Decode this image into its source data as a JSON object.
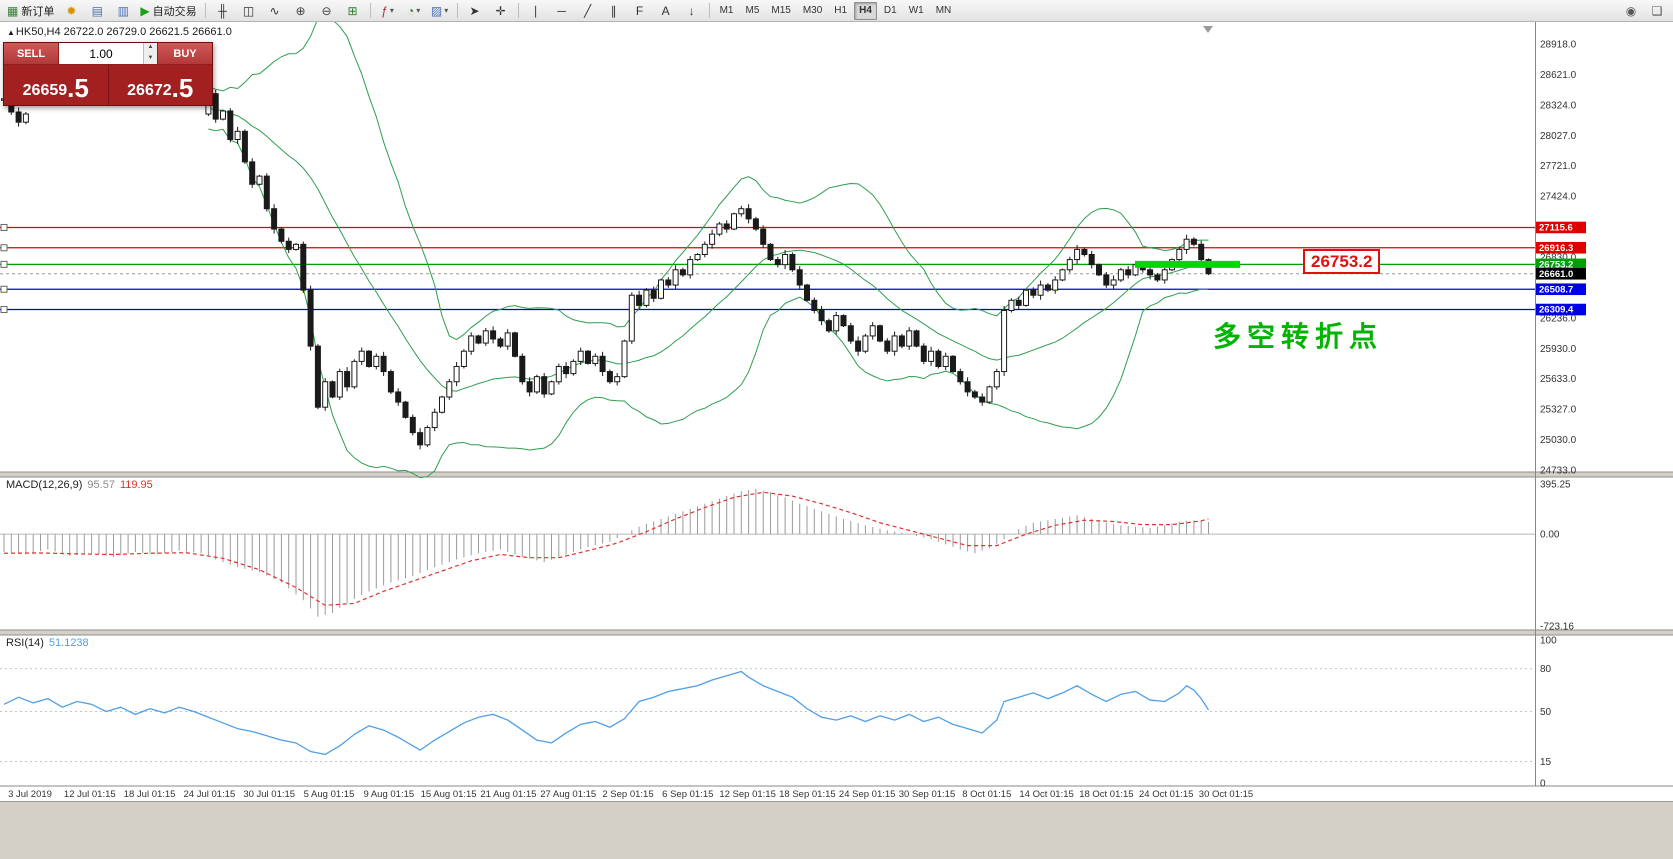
{
  "toolbar": {
    "groups": [
      {
        "items": [
          {
            "name": "new-order-button",
            "glyph": "▦",
            "color": "#2e7d32",
            "label": "新订单"
          },
          {
            "name": "megaphone-icon",
            "glyph": "✹",
            "color": "#d98f00"
          },
          {
            "name": "market-watch-button",
            "glyph": "▤",
            "color": "#4a6fb5"
          },
          {
            "name": "data-window-button",
            "glyph": "▥",
            "color": "#4a6fb5"
          },
          {
            "name": "autotrading-button",
            "glyph": "▶",
            "color": "#1e9e1e",
            "label": "自动交易"
          }
        ]
      },
      {
        "items": [
          {
            "name": "bar-chart-button",
            "glyph": "╫",
            "color": "#333333"
          },
          {
            "name": "candlestick-chart-button",
            "glyph": "◫",
            "color": "#333333"
          },
          {
            "name": "line-chart-button",
            "glyph": "∿",
            "color": "#333333"
          },
          {
            "name": "zoom-in-button",
            "glyph": "⊕",
            "color": "#444444"
          },
          {
            "name": "zoom-out-button",
            "glyph": "⊖",
            "color": "#444444"
          },
          {
            "name": "tile-windows-button",
            "glyph": "⊞",
            "color": "#2e7d32"
          }
        ]
      },
      {
        "items": [
          {
            "name": "indicators-button",
            "glyph": "ƒ",
            "color": "#b03030",
            "dropdown": true
          },
          {
            "name": "periods-button",
            "glyph": "◔",
            "color": "#2e7d32",
            "dropdown": true
          },
          {
            "name": "templates-button",
            "glyph": "▨",
            "color": "#4a6fb5",
            "dropdown": true
          }
        ]
      },
      {
        "items": [
          {
            "name": "cursor-button",
            "glyph": "➤",
            "color": "#333333"
          },
          {
            "name": "crosshair-button",
            "glyph": "✛",
            "color": "#333333"
          }
        ]
      },
      {
        "items": [
          {
            "name": "vertical-line-button",
            "glyph": "∣",
            "color": "#333333"
          },
          {
            "name": "horizontal-line-button",
            "glyph": "─",
            "color": "#333333"
          },
          {
            "name": "trendline-button",
            "glyph": "╱",
            "color": "#333333"
          },
          {
            "name": "channel-button",
            "glyph": "∥",
            "color": "#333333"
          },
          {
            "name": "fibonacci-button",
            "glyph": "F",
            "color": "#333333"
          },
          {
            "name": "text-button",
            "glyph": "A",
            "color": "#333333"
          },
          {
            "name": "arrows-button",
            "glyph": "↓",
            "color": "#333333"
          }
        ]
      }
    ],
    "timeframes": [
      "M1",
      "M5",
      "M15",
      "M30",
      "H1",
      "H4",
      "D1",
      "W1",
      "MN"
    ],
    "active_timeframe": "H4",
    "right_icons": [
      {
        "name": "notification-icon",
        "glyph": "◉",
        "color": "#555555"
      },
      {
        "name": "chat-icon",
        "glyph": "❑",
        "color": "#555555"
      }
    ]
  },
  "chart_header": {
    "symbol_readout": "HK50,H4 26722.0 26729.0 26621.5 26661.0"
  },
  "trade_panel": {
    "sell_label": "SELL",
    "buy_label": "BUY",
    "volume": "1.00",
    "sell_price": "26659.5",
    "buy_price": "26672.5"
  },
  "annotations": {
    "turning_point": "多空转折点",
    "price_callout": "26753.2"
  },
  "indicator_labels": {
    "macd_name": "MACD(12,26,9)",
    "macd_value_1": "95.57",
    "macd_value_2": "119.95",
    "rsi_name": "RSI(14)",
    "rsi_value": "51.1238"
  },
  "chart_data": {
    "type": "candlestick+indicators",
    "symbol": "HK50",
    "timeframe": "H4",
    "ohlc_readout": {
      "open": "26722.0",
      "high": "26729.0",
      "low": "26621.5",
      "close": "26661.0"
    },
    "price_axis_top": 28918.0,
    "price_axis_bottom": 24733.0,
    "price_axis_labels": [
      "28918.0",
      "28621.0",
      "28324.0",
      "28027.0",
      "27721.0",
      "27424.0",
      "27127.0",
      "26830.0",
      "26533.0",
      "26236.0",
      "25930.0",
      "25633.0",
      "25327.0",
      "25030.0",
      "24733.0"
    ],
    "hlines": [
      {
        "value": 27115.6,
        "label": "27115.6",
        "color": "#e00000",
        "type": "resistance"
      },
      {
        "value": 26916.3,
        "label": "26916.3",
        "color": "#e00000",
        "type": "resistance"
      },
      {
        "value": 26753.2,
        "label": "26753.2",
        "color": "#00a000",
        "type": "pivot"
      },
      {
        "value": 26508.7,
        "label": "26508.7",
        "color": "#0000e8",
        "type": "support"
      },
      {
        "value": 26309.4,
        "label": "26309.4",
        "color": "#0000e8",
        "type": "support"
      }
    ],
    "current_price_line": {
      "value": 26661.0,
      "label": "26661.0",
      "color": "#000000"
    },
    "highlight_segment": {
      "price": 26753.2,
      "x_start": 1135,
      "x_end": 1240,
      "color": "#00d800",
      "width": 7
    },
    "closes": [
      28380,
      28250,
      28150,
      28230,
      null,
      null,
      null,
      null,
      null,
      null,
      null,
      null,
      null,
      null,
      null,
      null,
      null,
      null,
      null,
      null,
      null,
      null,
      null,
      null,
      null,
      null,
      null,
      null,
      28430,
      28180,
      28260,
      27980,
      28060,
      27760,
      27540,
      27620,
      27300,
      27100,
      26980,
      26900,
      26950,
      26500,
      25950,
      25350,
      25600,
      25450,
      25700,
      25550,
      25800,
      25900,
      25750,
      25850,
      25700,
      25500,
      25400,
      25250,
      25100,
      24980,
      25150,
      25300,
      25450,
      25600,
      25750,
      25900,
      26050,
      25980,
      26100,
      26020,
      25950,
      26080,
      25850,
      25600,
      25500,
      25650,
      25480,
      25600,
      25750,
      25680,
      25800,
      25900,
      25780,
      25850,
      25700,
      25600,
      25650,
      26000,
      26450,
      26350,
      26500,
      26420,
      26600,
      26550,
      26700,
      26650,
      26800,
      26850,
      26950,
      27050,
      27150,
      27100,
      27250,
      27300,
      27200,
      27100,
      26950,
      26800,
      26750,
      26850,
      26700,
      26550,
      26400,
      26300,
      26200,
      26100,
      26250,
      26150,
      26000,
      25900,
      26050,
      26150,
      26000,
      25900,
      26050,
      25950,
      26100,
      25950,
      25800,
      25900,
      25750,
      25850,
      25700,
      25600,
      25500,
      25450,
      25400,
      25550,
      25700,
      26300,
      26400,
      26350,
      26500,
      26450,
      26550,
      26500,
      26600,
      26700,
      26800,
      26900,
      26850,
      26750,
      26650,
      26550,
      26600,
      26700,
      26650,
      26750,
      26700,
      26650,
      26600,
      26700,
      26800,
      26900,
      27000,
      26950,
      26800,
      26661
    ],
    "bollinger": {
      "period": 20,
      "deviation": 2,
      "color": "#2e9e50"
    },
    "macd": {
      "label": "MACD(12,26,9)",
      "axis_labels": [
        "395.25",
        "0.00",
        "-723.16"
      ],
      "ylim": [
        -723.16,
        395.25
      ],
      "hist_waypoints": [
        [
          0,
          -140
        ],
        [
          3,
          -160
        ],
        [
          6,
          -120
        ],
        [
          9,
          -170
        ],
        [
          12,
          -150
        ],
        [
          15,
          -180
        ],
        [
          18,
          -140
        ],
        [
          21,
          -160
        ],
        [
          24,
          -130
        ],
        [
          27,
          -150
        ],
        [
          29,
          -200
        ],
        [
          32,
          -260
        ],
        [
          35,
          -300
        ],
        [
          38,
          -380
        ],
        [
          41,
          -520
        ],
        [
          43,
          -650
        ],
        [
          45,
          -620
        ],
        [
          47,
          -540
        ],
        [
          50,
          -450
        ],
        [
          53,
          -380
        ],
        [
          56,
          -330
        ],
        [
          59,
          -260
        ],
        [
          62,
          -200
        ],
        [
          65,
          -150
        ],
        [
          68,
          -120
        ],
        [
          71,
          -180
        ],
        [
          74,
          -220
        ],
        [
          77,
          -160
        ],
        [
          80,
          -100
        ],
        [
          83,
          -60
        ],
        [
          85,
          0
        ],
        [
          87,
          60
        ],
        [
          90,
          120
        ],
        [
          93,
          180
        ],
        [
          96,
          240
        ],
        [
          99,
          300
        ],
        [
          101,
          340
        ],
        [
          103,
          355
        ],
        [
          105,
          330
        ],
        [
          107,
          290
        ],
        [
          109,
          240
        ],
        [
          112,
          180
        ],
        [
          115,
          120
        ],
        [
          118,
          70
        ],
        [
          121,
          30
        ],
        [
          124,
          0
        ],
        [
          127,
          -40
        ],
        [
          129,
          -80
        ],
        [
          131,
          -120
        ],
        [
          133,
          -150
        ],
        [
          135,
          -110
        ],
        [
          137,
          -40
        ],
        [
          139,
          40
        ],
        [
          141,
          90
        ],
        [
          143,
          110
        ],
        [
          145,
          130
        ],
        [
          147,
          150
        ],
        [
          149,
          120
        ],
        [
          151,
          90
        ],
        [
          153,
          70
        ],
        [
          155,
          60
        ],
        [
          157,
          50
        ],
        [
          159,
          70
        ],
        [
          161,
          100
        ],
        [
          163,
          110
        ],
        [
          157,
          50
        ],
        [
          165,
          96
        ]
      ],
      "signal_waypoints": [
        [
          0,
          -150
        ],
        [
          5,
          -148
        ],
        [
          10,
          -155
        ],
        [
          15,
          -160
        ],
        [
          20,
          -150
        ],
        [
          25,
          -146
        ],
        [
          30,
          -190
        ],
        [
          35,
          -280
        ],
        [
          40,
          -420
        ],
        [
          44,
          -560
        ],
        [
          48,
          -545
        ],
        [
          52,
          -450
        ],
        [
          56,
          -370
        ],
        [
          60,
          -290
        ],
        [
          64,
          -210
        ],
        [
          68,
          -160
        ],
        [
          72,
          -185
        ],
        [
          76,
          -185
        ],
        [
          80,
          -130
        ],
        [
          84,
          -70
        ],
        [
          88,
          20
        ],
        [
          92,
          120
        ],
        [
          96,
          210
        ],
        [
          100,
          290
        ],
        [
          104,
          330
        ],
        [
          108,
          300
        ],
        [
          112,
          240
        ],
        [
          116,
          170
        ],
        [
          120,
          90
        ],
        [
          124,
          30
        ],
        [
          128,
          -30
        ],
        [
          132,
          -90
        ],
        [
          136,
          -90
        ],
        [
          140,
          0
        ],
        [
          144,
          70
        ],
        [
          148,
          110
        ],
        [
          152,
          100
        ],
        [
          156,
          75
        ],
        [
          160,
          75
        ],
        [
          164,
          105
        ],
        [
          165,
          120
        ]
      ]
    },
    "rsi": {
      "label": "RSI(14)",
      "axis_labels": [
        "100",
        "80",
        "50",
        "15",
        "0"
      ],
      "axis_values": [
        100,
        80,
        50,
        15,
        0
      ],
      "levels": [
        80,
        50,
        15
      ],
      "color": "#4f9fe8",
      "waypoints": [
        [
          0,
          55
        ],
        [
          2,
          60
        ],
        [
          4,
          56
        ],
        [
          6,
          59
        ],
        [
          8,
          53
        ],
        [
          10,
          57
        ],
        [
          12,
          55
        ],
        [
          14,
          50
        ],
        [
          16,
          53
        ],
        [
          18,
          48
        ],
        [
          20,
          52
        ],
        [
          22,
          49
        ],
        [
          24,
          53
        ],
        [
          26,
          50
        ],
        [
          28,
          46
        ],
        [
          30,
          42
        ],
        [
          32,
          38
        ],
        [
          34,
          36
        ],
        [
          36,
          33
        ],
        [
          38,
          30
        ],
        [
          40,
          28
        ],
        [
          42,
          22
        ],
        [
          44,
          20
        ],
        [
          46,
          26
        ],
        [
          48,
          34
        ],
        [
          50,
          40
        ],
        [
          52,
          37
        ],
        [
          54,
          32
        ],
        [
          56,
          26
        ],
        [
          57,
          23
        ],
        [
          59,
          30
        ],
        [
          61,
          36
        ],
        [
          63,
          42
        ],
        [
          65,
          46
        ],
        [
          67,
          48
        ],
        [
          69,
          44
        ],
        [
          71,
          37
        ],
        [
          73,
          30
        ],
        [
          75,
          28
        ],
        [
          77,
          35
        ],
        [
          79,
          41
        ],
        [
          81,
          43
        ],
        [
          83,
          39
        ],
        [
          85,
          45
        ],
        [
          87,
          57
        ],
        [
          89,
          60
        ],
        [
          91,
          64
        ],
        [
          93,
          66
        ],
        [
          95,
          68
        ],
        [
          97,
          72
        ],
        [
          99,
          75
        ],
        [
          101,
          78
        ],
        [
          102,
          74
        ],
        [
          104,
          68
        ],
        [
          106,
          64
        ],
        [
          108,
          60
        ],
        [
          110,
          52
        ],
        [
          112,
          46
        ],
        [
          114,
          44
        ],
        [
          116,
          47
        ],
        [
          118,
          43
        ],
        [
          120,
          47
        ],
        [
          122,
          44
        ],
        [
          124,
          48
        ],
        [
          126,
          43
        ],
        [
          128,
          46
        ],
        [
          130,
          41
        ],
        [
          132,
          38
        ],
        [
          134,
          35
        ],
        [
          136,
          44
        ],
        [
          137,
          57
        ],
        [
          139,
          60
        ],
        [
          141,
          63
        ],
        [
          143,
          59
        ],
        [
          145,
          63
        ],
        [
          147,
          68
        ],
        [
          149,
          62
        ],
        [
          151,
          57
        ],
        [
          153,
          62
        ],
        [
          155,
          64
        ],
        [
          157,
          58
        ],
        [
          159,
          57
        ],
        [
          161,
          63
        ],
        [
          162,
          68
        ],
        [
          163,
          65
        ],
        [
          164,
          59
        ],
        [
          165,
          51.12
        ]
      ]
    },
    "x_axis_labels": [
      "3 Jul 2019",
      "12 Jul 01:15",
      "18 Jul 01:15",
      "24 Jul 01:15",
      "30 Jul 01:15",
      "5 Aug 01:15",
      "9 Aug 01:15",
      "15 Aug 01:15",
      "21 Aug 01:15",
      "27 Aug 01:15",
      "2 Sep 01:15",
      "6 Sep 01:15",
      "12 Sep 01:15",
      "18 Sep 01:15",
      "24 Sep 01:15",
      "30 Sep 01:15",
      "8 Oct 01:15",
      "14 Oct 01:15",
      "18 Oct 01:15",
      "24 Oct 01:15",
      "30 Oct 01:15"
    ]
  }
}
